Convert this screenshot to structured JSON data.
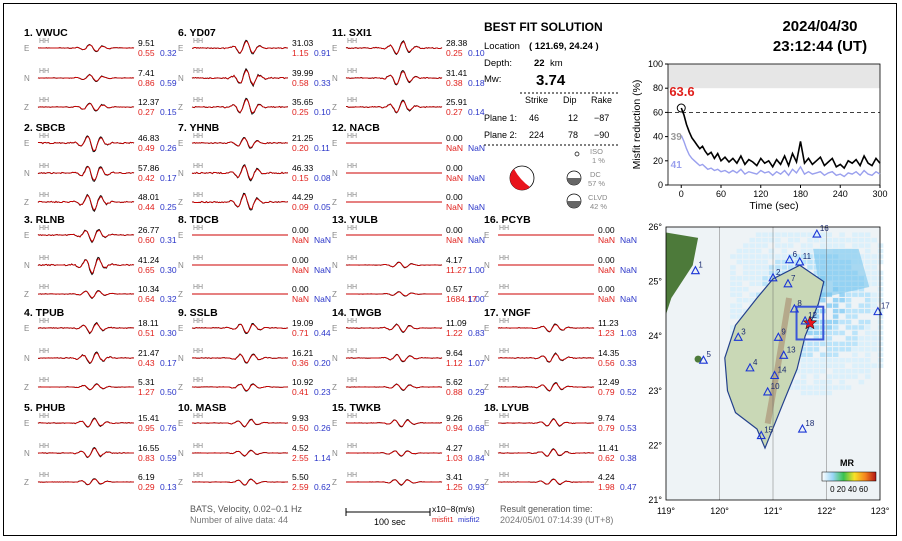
{
  "stations": [
    {
      "num": "1.",
      "name": "VWUC",
      "col": 0,
      "row": 0,
      "rows": [
        {
          "comp": "E",
          "amp": "9.51",
          "m1": "0.55",
          "m2": "0.32"
        },
        {
          "comp": "N",
          "amp": "7.41",
          "m1": "0.86",
          "m2": "0.59"
        },
        {
          "comp": "Z",
          "amp": "12.37",
          "m1": "0.27",
          "m2": "0.15"
        }
      ]
    },
    {
      "num": "2.",
      "name": "SBCB",
      "col": 0,
      "row": 1,
      "rows": [
        {
          "comp": "E",
          "amp": "46.83",
          "m1": "0.49",
          "m2": "0.26"
        },
        {
          "comp": "N",
          "amp": "57.86",
          "m1": "0.42",
          "m2": "0.17"
        },
        {
          "comp": "Z",
          "amp": "48.01",
          "m1": "0.44",
          "m2": "0.25"
        }
      ]
    },
    {
      "num": "3.",
      "name": "RLNB",
      "col": 0,
      "row": 2,
      "rows": [
        {
          "comp": "E",
          "amp": "26.77",
          "m1": "0.60",
          "m2": "0.31"
        },
        {
          "comp": "N",
          "amp": "41.24",
          "m1": "0.65",
          "m2": "0.30"
        },
        {
          "comp": "Z",
          "amp": "10.34",
          "m1": "0.64",
          "m2": "0.32"
        }
      ]
    },
    {
      "num": "4.",
      "name": "TPUB",
      "col": 0,
      "row": 3,
      "rows": [
        {
          "comp": "E",
          "amp": "18.11",
          "m1": "0.51",
          "m2": "0.30"
        },
        {
          "comp": "N",
          "amp": "21.47",
          "m1": "0.43",
          "m2": "0.17"
        },
        {
          "comp": "Z",
          "amp": "5.31",
          "m1": "1.27",
          "m2": "0.50"
        }
      ]
    },
    {
      "num": "5.",
      "name": "PHUB",
      "col": 0,
      "row": 4,
      "rows": [
        {
          "comp": "E",
          "amp": "15.41",
          "m1": "0.95",
          "m2": "0.76"
        },
        {
          "comp": "N",
          "amp": "16.55",
          "m1": "0.83",
          "m2": "0.59"
        },
        {
          "comp": "Z",
          "amp": "6.19",
          "m1": "0.29",
          "m2": "0.13"
        }
      ]
    },
    {
      "num": "6.",
      "name": "YD07",
      "col": 1,
      "row": 0,
      "rows": [
        {
          "comp": "E",
          "amp": "31.03",
          "m1": "1.15",
          "m2": "0.91"
        },
        {
          "comp": "N",
          "amp": "39.99",
          "m1": "0.58",
          "m2": "0.33"
        },
        {
          "comp": "Z",
          "amp": "35.65",
          "m1": "0.25",
          "m2": "0.10"
        }
      ]
    },
    {
      "num": "7.",
      "name": "YHNB",
      "col": 1,
      "row": 1,
      "rows": [
        {
          "comp": "E",
          "amp": "21.25",
          "m1": "0.20",
          "m2": "0.11"
        },
        {
          "comp": "N",
          "amp": "46.33",
          "m1": "0.15",
          "m2": "0.08"
        },
        {
          "comp": "Z",
          "amp": "44.29",
          "m1": "0.09",
          "m2": "0.05"
        }
      ]
    },
    {
      "num": "8.",
      "name": "TDCB",
      "col": 1,
      "row": 2,
      "rows": [
        {
          "comp": "E",
          "amp": "0.00",
          "m1": "NaN",
          "m2": "NaN"
        },
        {
          "comp": "N",
          "amp": "0.00",
          "m1": "NaN",
          "m2": "NaN"
        },
        {
          "comp": "Z",
          "amp": "0.00",
          "m1": "NaN",
          "m2": "NaN"
        }
      ]
    },
    {
      "num": "9.",
      "name": "SSLB",
      "col": 1,
      "row": 3,
      "rows": [
        {
          "comp": "E",
          "amp": "19.09",
          "m1": "0.71",
          "m2": "0.44"
        },
        {
          "comp": "N",
          "amp": "16.21",
          "m1": "0.36",
          "m2": "0.20"
        },
        {
          "comp": "Z",
          "amp": "10.92",
          "m1": "0.41",
          "m2": "0.23"
        }
      ]
    },
    {
      "num": "10.",
      "name": "MASB",
      "col": 1,
      "row": 4,
      "rows": [
        {
          "comp": "E",
          "amp": "9.93",
          "m1": "0.50",
          "m2": "0.26"
        },
        {
          "comp": "N",
          "amp": "4.52",
          "m1": "2.55",
          "m2": "1.14"
        },
        {
          "comp": "Z",
          "amp": "5.50",
          "m1": "2.59",
          "m2": "0.62"
        }
      ]
    },
    {
      "num": "11.",
      "name": "SXI1",
      "col": 2,
      "row": 0,
      "rows": [
        {
          "comp": "E",
          "amp": "28.38",
          "m1": "0.25",
          "m2": "0.10"
        },
        {
          "comp": "N",
          "amp": "31.41",
          "m1": "0.38",
          "m2": "0.18"
        },
        {
          "comp": "Z",
          "amp": "25.91",
          "m1": "0.27",
          "m2": "0.14"
        }
      ]
    },
    {
      "num": "12.",
      "name": "NACB",
      "col": 2,
      "row": 1,
      "rows": [
        {
          "comp": "E",
          "amp": "0.00",
          "m1": "NaN",
          "m2": "NaN"
        },
        {
          "comp": "N",
          "amp": "0.00",
          "m1": "NaN",
          "m2": "NaN"
        },
        {
          "comp": "Z",
          "amp": "0.00",
          "m1": "NaN",
          "m2": "NaN"
        }
      ]
    },
    {
      "num": "13.",
      "name": "YULB",
      "col": 2,
      "row": 2,
      "rows": [
        {
          "comp": "E",
          "amp": "0.00",
          "m1": "NaN",
          "m2": "NaN"
        },
        {
          "comp": "N",
          "amp": "4.17",
          "m1": "11.27",
          "m2": "1.00"
        },
        {
          "comp": "Z",
          "amp": "0.57",
          "m1": "1684.17",
          "m2": "1.00"
        }
      ]
    },
    {
      "num": "14.",
      "name": "TWGB",
      "col": 2,
      "row": 3,
      "rows": [
        {
          "comp": "E",
          "amp": "11.09",
          "m1": "1.22",
          "m2": "0.83"
        },
        {
          "comp": "N",
          "amp": "9.64",
          "m1": "1.12",
          "m2": "1.07"
        },
        {
          "comp": "Z",
          "amp": "5.62",
          "m1": "0.88",
          "m2": "0.29"
        }
      ]
    },
    {
      "num": "15.",
      "name": "TWKB",
      "col": 2,
      "row": 4,
      "rows": [
        {
          "comp": "E",
          "amp": "9.26",
          "m1": "0.94",
          "m2": "0.68"
        },
        {
          "comp": "N",
          "amp": "4.27",
          "m1": "1.03",
          "m2": "0.84"
        },
        {
          "comp": "Z",
          "amp": "3.41",
          "m1": "1.25",
          "m2": "0.93"
        }
      ]
    },
    {
      "num": "16.",
      "name": "PCYB",
      "col": 3,
      "row": 2,
      "rows": [
        {
          "comp": "E",
          "amp": "0.00",
          "m1": "NaN",
          "m2": "NaN"
        },
        {
          "comp": "N",
          "amp": "0.00",
          "m1": "NaN",
          "m2": "NaN"
        },
        {
          "comp": "Z",
          "amp": "0.00",
          "m1": "NaN",
          "m2": "NaN"
        }
      ]
    },
    {
      "num": "17.",
      "name": "YNGF",
      "col": 3,
      "row": 3,
      "rows": [
        {
          "comp": "E",
          "amp": "11.23",
          "m1": "1.23",
          "m2": "1.03"
        },
        {
          "comp": "N",
          "amp": "14.35",
          "m1": "0.56",
          "m2": "0.33"
        },
        {
          "comp": "Z",
          "amp": "12.49",
          "m1": "0.79",
          "m2": "0.52"
        }
      ]
    },
    {
      "num": "18.",
      "name": "LYUB",
      "col": 3,
      "row": 4,
      "rows": [
        {
          "comp": "E",
          "amp": "9.74",
          "m1": "0.79",
          "m2": "0.53"
        },
        {
          "comp": "N",
          "amp": "11.41",
          "m1": "0.62",
          "m2": "0.38"
        },
        {
          "comp": "Z",
          "amp": "4.24",
          "m1": "1.98",
          "m2": "0.47"
        }
      ]
    }
  ],
  "channel_label": "HH",
  "solution": {
    "title": "BEST FIT SOLUTION",
    "location_label": "Location",
    "location_value": "( 121.69, 24.24 )",
    "depth_label": "Depth:",
    "depth_value": "22",
    "depth_unit": "km",
    "mw_label": "Mw:",
    "mw_value": "3.74",
    "headers": [
      "Strike",
      "Dip",
      "Rake"
    ],
    "planes": [
      {
        "label": "Plane 1:",
        "strike": "46",
        "dip": "12",
        "rake": "−87"
      },
      {
        "label": "Plane 2:",
        "strike": "224",
        "dip": "78",
        "rake": "−90"
      }
    ],
    "iso_label": "ISO",
    "iso_value": "1 %",
    "dc_label": "DC",
    "dc_value": "57 %",
    "clvd_label": "CLVD",
    "clvd_value": "42 %"
  },
  "header": {
    "date": "2024/04/30",
    "time": "23:12:44  (UT)"
  },
  "footer": {
    "line1": "BATS, Velocity, 0.02−0.1 Hz",
    "line2": "Number of alive data: 44",
    "scale_label": "100 sec",
    "units": "x10−8(m/s)",
    "legend_m1": "misfit1",
    "legend_m2": "misfit2",
    "result_label": "Result generation time:",
    "result_time": "2024/05/01 07:14:39 (UT+8)"
  },
  "colors": {
    "obs": "#000000",
    "syn": "#cc0000",
    "misfit1": "#e0201c",
    "misfit2": "#2a35c9",
    "grey": "#888888"
  },
  "chart_data": [
    {
      "type": "line",
      "ylabel": "Misfit reduction (%)",
      "xlabel": "Time (sec)",
      "xlim": [
        -20,
        300
      ],
      "ylim": [
        0,
        100
      ],
      "xticks": [
        0,
        60,
        120,
        180,
        240,
        300
      ],
      "yticks": [
        0,
        20,
        40,
        60,
        80,
        100
      ],
      "annotations": {
        "best": "63.6",
        "v2": "39",
        "v3": "41"
      },
      "reference_line": 80,
      "series": [
        {
          "color": "#000000",
          "x": [
            0,
            4,
            8,
            12,
            16,
            20,
            24,
            28,
            32,
            36,
            40,
            45,
            50,
            55,
            60,
            66,
            72,
            78,
            84,
            90,
            96,
            102,
            108,
            114,
            120,
            126,
            132,
            138,
            144,
            150,
            156,
            162,
            168,
            174,
            180,
            186,
            192,
            198,
            204,
            210,
            216,
            222,
            228,
            234,
            240,
            246,
            252,
            258,
            264,
            270,
            276,
            282,
            288,
            294,
            300
          ],
          "y": [
            63.6,
            58,
            50,
            44,
            39,
            36,
            33,
            30,
            32,
            28,
            25,
            27,
            22,
            26,
            20,
            23,
            19,
            22,
            18,
            24,
            17,
            21,
            19,
            16,
            22,
            18,
            20,
            15,
            21,
            17,
            24,
            16,
            26,
            19,
            36,
            18,
            22,
            17,
            20,
            23,
            16,
            19,
            22,
            15,
            17,
            14,
            20,
            18,
            21,
            16,
            24,
            18,
            16,
            22,
            18
          ]
        },
        {
          "color": "#9aa0ee",
          "x": [
            0,
            4,
            8,
            12,
            16,
            20,
            24,
            28,
            32,
            36,
            40,
            45,
            50,
            55,
            60,
            66,
            72,
            78,
            84,
            90,
            96,
            102,
            108,
            114,
            120,
            126,
            132,
            138,
            144,
            150,
            156,
            162,
            168,
            174,
            180,
            186,
            192,
            198,
            204,
            210,
            216,
            222,
            228,
            234,
            240,
            246,
            252,
            258,
            264,
            270,
            276,
            282,
            288,
            294,
            300
          ],
          "y": [
            41,
            36,
            30,
            25,
            22,
            20,
            18,
            16,
            17,
            15,
            13,
            14,
            12,
            13,
            11,
            12,
            10,
            12,
            10,
            13,
            9,
            11,
            10,
            9,
            12,
            10,
            11,
            8,
            11,
            9,
            12,
            8,
            13,
            10,
            15,
            9,
            11,
            9,
            10,
            11,
            8,
            10,
            11,
            8,
            9,
            7,
            10,
            9,
            11,
            8,
            12,
            9,
            8,
            11,
            9
          ]
        }
      ]
    },
    {
      "type": "map",
      "xticks": [
        "119°",
        "120°",
        "121°",
        "122°",
        "123°"
      ],
      "yticks": [
        "26°",
        "25°",
        "24°",
        "23°",
        "22°",
        "21°"
      ],
      "lon_range": [
        119,
        123
      ],
      "lat_range": [
        21,
        26
      ],
      "colorbar_label": "MR",
      "colorbar_ticks": "0 20 40 60",
      "epicenter": {
        "lon": 121.69,
        "lat": 24.24
      },
      "stations": [
        {
          "id": "1",
          "lon": 119.55,
          "lat": 25.2
        },
        {
          "id": "2",
          "lon": 121.0,
          "lat": 25.07
        },
        {
          "id": "3",
          "lon": 120.35,
          "lat": 23.98
        },
        {
          "id": "4",
          "lon": 120.57,
          "lat": 23.42
        },
        {
          "id": "5",
          "lon": 119.7,
          "lat": 23.56
        },
        {
          "id": "6",
          "lon": 121.31,
          "lat": 25.4
        },
        {
          "id": "7",
          "lon": 121.28,
          "lat": 24.96
        },
        {
          "id": "8",
          "lon": 121.4,
          "lat": 24.5
        },
        {
          "id": "9",
          "lon": 121.1,
          "lat": 23.98
        },
        {
          "id": "10",
          "lon": 120.9,
          "lat": 22.98
        },
        {
          "id": "11",
          "lon": 121.5,
          "lat": 25.36
        },
        {
          "id": "12",
          "lon": 121.6,
          "lat": 24.28
        },
        {
          "id": "13",
          "lon": 121.2,
          "lat": 23.65
        },
        {
          "id": "14",
          "lon": 121.03,
          "lat": 23.28
        },
        {
          "id": "15",
          "lon": 120.78,
          "lat": 22.18
        },
        {
          "id": "16",
          "lon": 121.82,
          "lat": 25.87
        },
        {
          "id": "17",
          "lon": 122.96,
          "lat": 24.45
        },
        {
          "id": "18",
          "lon": 121.55,
          "lat": 22.3
        }
      ]
    }
  ]
}
